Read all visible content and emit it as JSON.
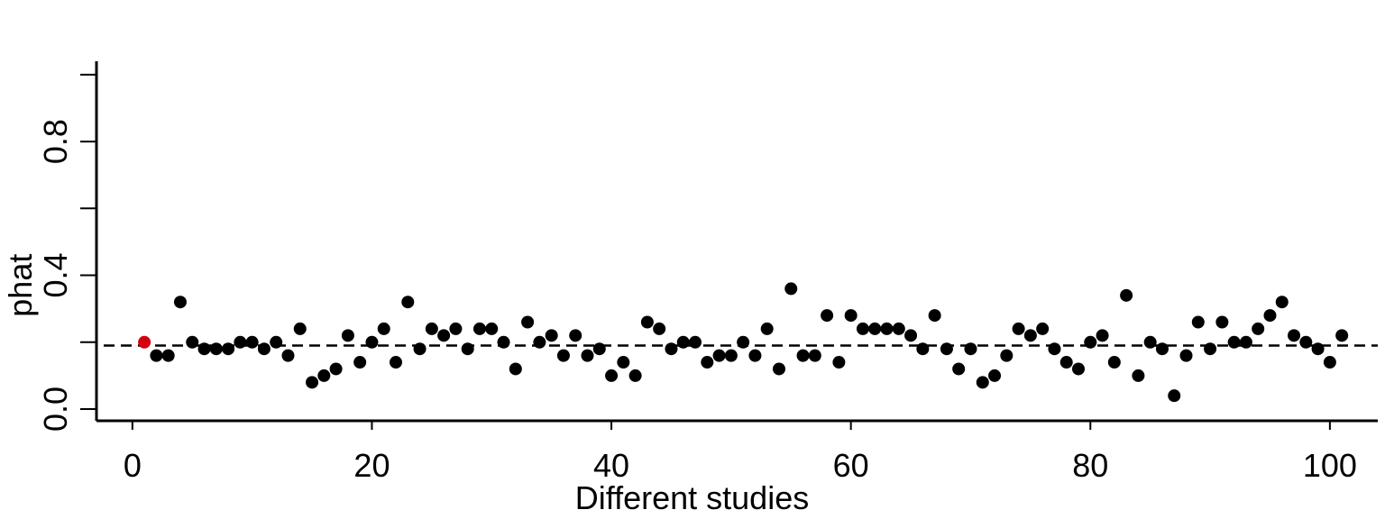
{
  "chart_data": {
    "type": "scatter",
    "title": "",
    "xlabel": "Different studies",
    "ylabel": "phat",
    "xlim": [
      -3,
      104
    ],
    "ylim": [
      -0.035,
      1.04
    ],
    "xticks": [
      0,
      20,
      40,
      60,
      80,
      100
    ],
    "xtick_labels": [
      "0",
      "20",
      "40",
      "60",
      "80",
      "100"
    ],
    "yticks": [
      0.0,
      0.2,
      0.4,
      0.6,
      0.8,
      1.0
    ],
    "ytick_labels": [
      "0.0",
      "",
      "0.4",
      "",
      "0.8",
      ""
    ],
    "grid": false,
    "reference_line": {
      "y": 0.19,
      "style": "dashed",
      "color": "#000000"
    },
    "point_color": "#000000",
    "highlight_color": "#d40010",
    "highlight_index": 0,
    "x": [
      1,
      2,
      3,
      4,
      5,
      6,
      7,
      8,
      9,
      10,
      11,
      12,
      13,
      14,
      15,
      16,
      17,
      18,
      19,
      20,
      21,
      22,
      23,
      24,
      25,
      26,
      27,
      28,
      29,
      30,
      31,
      32,
      33,
      34,
      35,
      36,
      37,
      38,
      39,
      40,
      41,
      42,
      43,
      44,
      45,
      46,
      47,
      48,
      49,
      50,
      51,
      52,
      53,
      54,
      55,
      56,
      57,
      58,
      59,
      60,
      61,
      62,
      63,
      64,
      65,
      66,
      67,
      68,
      69,
      70,
      71,
      72,
      73,
      74,
      75,
      76,
      77,
      78,
      79,
      80,
      81,
      82,
      83,
      84,
      85,
      86,
      87,
      88,
      89,
      90,
      91,
      92,
      93,
      94,
      95,
      96,
      97,
      98,
      99,
      100,
      101
    ],
    "y": [
      0.2,
      0.16,
      0.16,
      0.32,
      0.2,
      0.18,
      0.18,
      0.18,
      0.2,
      0.2,
      0.18,
      0.2,
      0.16,
      0.24,
      0.08,
      0.1,
      0.12,
      0.22,
      0.14,
      0.2,
      0.24,
      0.14,
      0.32,
      0.18,
      0.24,
      0.22,
      0.24,
      0.18,
      0.24,
      0.24,
      0.2,
      0.12,
      0.26,
      0.2,
      0.22,
      0.16,
      0.22,
      0.16,
      0.18,
      0.1,
      0.14,
      0.1,
      0.26,
      0.24,
      0.18,
      0.2,
      0.2,
      0.14,
      0.16,
      0.16,
      0.2,
      0.16,
      0.24,
      0.12,
      0.36,
      0.16,
      0.16,
      0.28,
      0.14,
      0.28,
      0.24,
      0.24,
      0.24,
      0.24,
      0.22,
      0.18,
      0.28,
      0.18,
      0.12,
      0.18,
      0.08,
      0.1,
      0.16,
      0.24,
      0.22,
      0.24,
      0.18,
      0.14,
      0.12,
      0.2,
      0.22,
      0.14,
      0.34,
      0.1,
      0.2,
      0.18,
      0.04,
      0.16,
      0.26,
      0.18,
      0.26,
      0.2,
      0.2,
      0.24,
      0.28,
      0.32,
      0.22,
      0.2,
      0.18,
      0.14,
      0.22
    ]
  }
}
